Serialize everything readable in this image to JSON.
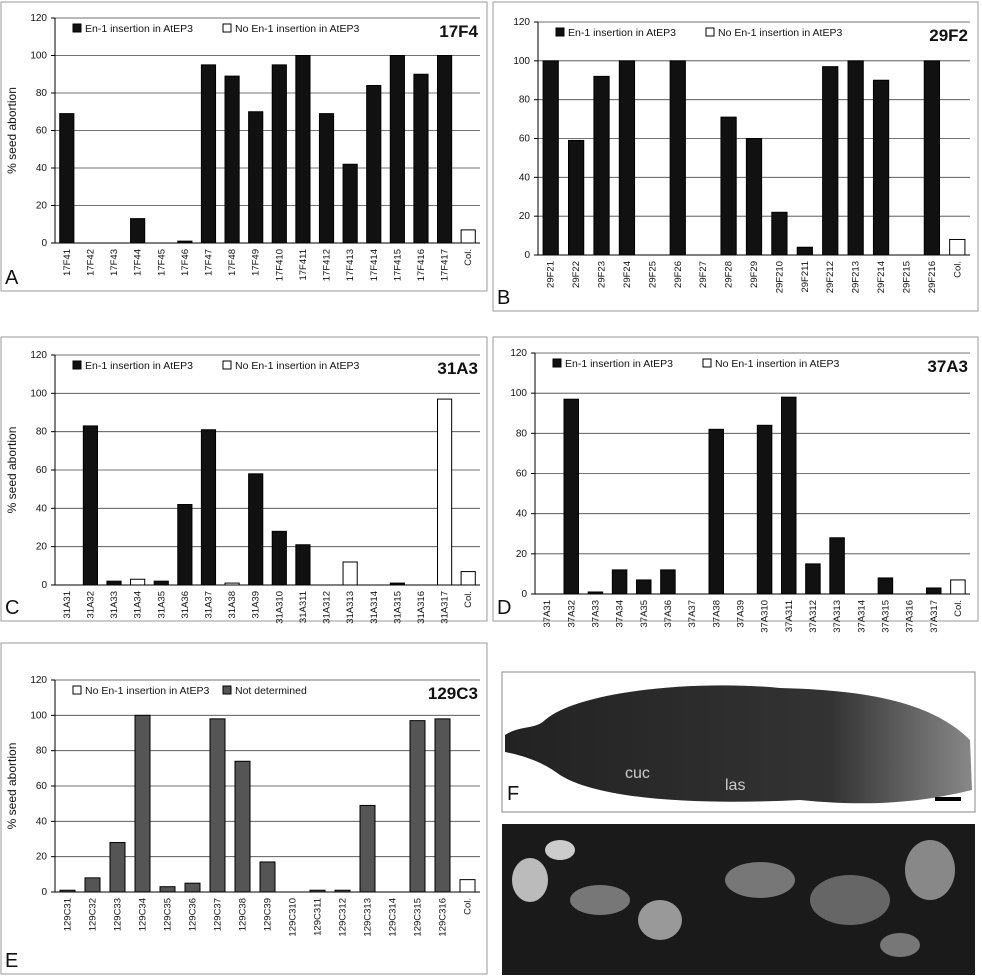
{
  "chart_data": [
    {
      "type": "bar",
      "panel_label": "A",
      "title": "17F4",
      "y_label": "% seed abortion",
      "categories": [
        "17F41",
        "17F42",
        "17F43",
        "17F44",
        "17F45",
        "17F46",
        "17F47",
        "17F48",
        "17F49",
        "17F410",
        "17F411",
        "17F412",
        "17F413",
        "17F414",
        "17F415",
        "17F416",
        "17F417",
        "Col."
      ],
      "series": [
        {
          "name": "En-1 insertion in AtEP3",
          "color": "#111111",
          "values": [
            69,
            0,
            0,
            13,
            0,
            1,
            95,
            89,
            70,
            95,
            100,
            69,
            42,
            84,
            100,
            90,
            100,
            null
          ]
        },
        {
          "name": "No En-1 insertion in AtEP3",
          "color": "#ffffff",
          "values": [
            null,
            null,
            null,
            null,
            null,
            null,
            null,
            null,
            null,
            null,
            null,
            null,
            null,
            null,
            null,
            null,
            null,
            7
          ]
        }
      ],
      "ylim": [
        0,
        120
      ],
      "yticks": [
        0,
        20,
        40,
        60,
        80,
        100,
        120
      ],
      "grid": true
    },
    {
      "type": "bar",
      "panel_label": "B",
      "title": "29F2",
      "categories": [
        "29F21",
        "29F22",
        "29F23",
        "29F24",
        "29F25",
        "29F26",
        "29F27",
        "29F28",
        "29F29",
        "29F210",
        "29F211",
        "29F212",
        "29F213",
        "29F214",
        "29F215",
        "29F216",
        "Col."
      ],
      "series": [
        {
          "name": "En-1 insertion in AtEP3",
          "color": "#111111",
          "values": [
            100,
            59,
            92,
            100,
            0,
            100,
            0,
            71,
            60,
            22,
            4,
            97,
            100,
            90,
            0,
            100,
            null
          ]
        },
        {
          "name": "No En-1 insertion in AtEP3",
          "color": "#ffffff",
          "values": [
            null,
            null,
            null,
            null,
            null,
            null,
            null,
            null,
            null,
            null,
            null,
            null,
            null,
            null,
            null,
            null,
            8
          ]
        }
      ],
      "ylim": [
        0,
        120
      ],
      "yticks": [
        0,
        20,
        40,
        60,
        80,
        100,
        120
      ],
      "grid": true
    },
    {
      "type": "bar",
      "panel_label": "C",
      "title": "31A3",
      "y_label": "% seed abortion",
      "categories": [
        "31A31",
        "31A32",
        "31A33",
        "31A34",
        "31A35",
        "31A36",
        "31A37",
        "31A38",
        "31A39",
        "31A310",
        "31A311",
        "31A312",
        "31A313",
        "31A314",
        "31A315",
        "31A316",
        "31A317",
        "Col."
      ],
      "series": [
        {
          "name": "En-1 insertion in AtEP3",
          "color": "#111111",
          "values": [
            0,
            83,
            2,
            null,
            2,
            42,
            81,
            null,
            58,
            28,
            21,
            0,
            null,
            0,
            1,
            0,
            null,
            null
          ]
        },
        {
          "name": "No En-1 insertion in AtEP3",
          "color": "#ffffff",
          "values": [
            null,
            null,
            null,
            3,
            null,
            null,
            null,
            1,
            null,
            null,
            null,
            null,
            12,
            null,
            null,
            null,
            97,
            7
          ]
        }
      ],
      "ylim": [
        0,
        120
      ],
      "yticks": [
        0,
        20,
        40,
        60,
        80,
        100,
        120
      ],
      "grid": true
    },
    {
      "type": "bar",
      "panel_label": "D",
      "title": "37A3",
      "categories": [
        "37A31",
        "37A32",
        "37A33",
        "37A34",
        "37A35",
        "37A36",
        "37A37",
        "37A38",
        "37A39",
        "37A310",
        "37A311",
        "37A312",
        "37A313",
        "37A314",
        "37A315",
        "37A316",
        "37A317",
        "Col."
      ],
      "series": [
        {
          "name": "En-1 insertion in AtEP3",
          "color": "#111111",
          "values": [
            0,
            97,
            1,
            12,
            7,
            12,
            0,
            82,
            0,
            84,
            98,
            15,
            28,
            0,
            8,
            0,
            3,
            null
          ]
        },
        {
          "name": "No En-1 insertion in AtEP3",
          "color": "#ffffff",
          "values": [
            null,
            null,
            null,
            null,
            null,
            null,
            null,
            null,
            null,
            null,
            null,
            null,
            null,
            null,
            null,
            null,
            null,
            7
          ]
        }
      ],
      "ylim": [
        0,
        120
      ],
      "yticks": [
        0,
        20,
        40,
        60,
        80,
        100,
        120
      ],
      "grid": true
    },
    {
      "type": "bar",
      "panel_label": "E",
      "title": "129C3",
      "y_label": "% seed abortion",
      "categories": [
        "129C31",
        "129C32",
        "129C33",
        "129C34",
        "129C35",
        "129C36",
        "129C37",
        "129C38",
        "129C39",
        "129C310",
        "129C311",
        "129C312",
        "129C313",
        "129C314",
        "129C315",
        "129C316",
        "Col."
      ],
      "series": [
        {
          "name": "No En-1 insertion in AtEP3",
          "color": "#ffffff",
          "values": [
            null,
            null,
            null,
            null,
            null,
            null,
            null,
            null,
            null,
            null,
            null,
            null,
            null,
            null,
            null,
            null,
            7
          ]
        },
        {
          "name": "Not determined",
          "color": "#555555",
          "values": [
            1,
            8,
            28,
            100,
            3,
            5,
            98,
            74,
            17,
            0,
            1,
            1,
            49,
            0,
            97,
            98,
            null
          ]
        }
      ],
      "ylim": [
        0,
        120
      ],
      "yticks": [
        0,
        20,
        40,
        60,
        80,
        100,
        120
      ],
      "grid": true
    }
  ],
  "images": [
    {
      "panel_label": "F",
      "annotations": [
        "cuc",
        "las"
      ]
    }
  ]
}
